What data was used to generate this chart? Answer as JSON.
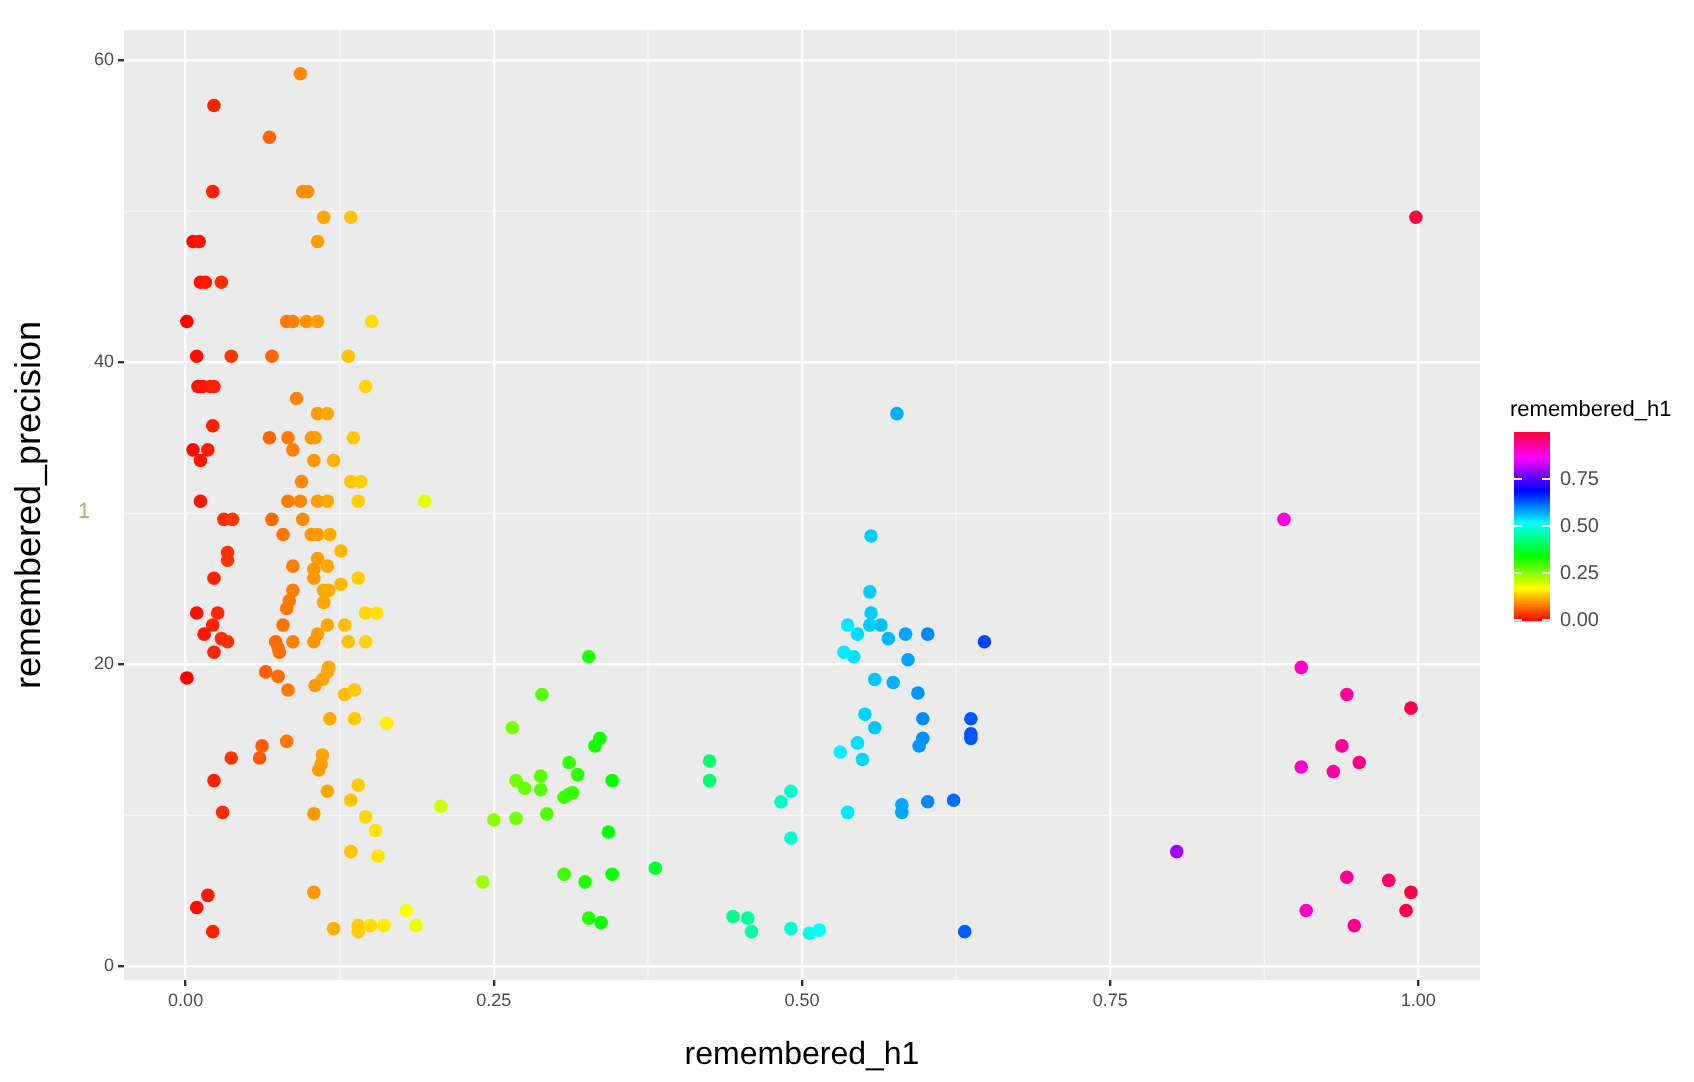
{
  "chart_data": {
    "type": "scatter",
    "xlabel": "remembered_h1",
    "ylabel": "remembered_precision",
    "clabel": "remembered_h1",
    "annotations": [
      "1"
    ],
    "x": [
      0.093,
      0.023,
      0.068,
      0.022,
      0.095,
      0.099,
      0.112,
      0.134,
      0.006,
      0.011,
      0.107,
      0.012,
      0.016,
      0.029,
      0.001,
      0.082,
      0.087,
      0.098,
      0.107,
      0.151,
      0.009,
      0.037,
      0.07,
      0.132,
      0.146,
      0.01,
      0.014,
      0.02,
      0.023,
      0.09,
      0.107,
      0.115,
      0.022,
      0.068,
      0.083,
      0.102,
      0.105,
      0.136,
      0.006,
      0.018,
      0.012,
      0.087,
      0.104,
      0.12,
      0.094,
      0.134,
      0.142,
      0.012,
      0.083,
      0.093,
      0.107,
      0.115,
      0.14,
      0.194,
      0.031,
      0.038,
      0.07,
      0.095,
      0.102,
      0.107,
      0.117,
      0.079,
      0.034,
      0.034,
      0.107,
      0.126,
      0.087,
      0.104,
      0.104,
      0.115,
      0.023,
      0.14,
      0.126,
      0.087,
      0.112,
      0.116,
      0.084,
      0.112,
      0.082,
      0.009,
      0.026,
      0.146,
      0.155,
      0.022,
      0.079,
      0.115,
      0.129,
      0.015,
      0.107,
      0.029,
      0.034,
      0.073,
      0.087,
      0.104,
      0.132,
      0.146,
      0.023,
      0.075,
      0.076,
      0.001,
      0.065,
      0.075,
      0.083,
      0.116,
      0.115,
      0.111,
      0.105,
      0.129,
      0.137,
      0.117,
      0.137,
      0.163,
      0.082,
      0.062,
      0.06,
      0.037,
      0.111,
      0.11,
      0.108,
      0.023,
      0.115,
      0.14,
      0.134,
      0.03,
      0.104,
      0.146,
      0.154,
      0.134,
      0.156,
      0.104,
      0.018,
      0.009,
      0.022,
      0.179,
      0.187,
      0.12,
      0.14,
      0.14,
      0.15,
      0.161,
      0.207,
      0.241,
      0.25,
      0.268,
      0.265,
      0.289,
      0.327,
      0.268,
      0.275,
      0.288,
      0.288,
      0.293,
      0.307,
      0.311,
      0.314,
      0.311,
      0.318,
      0.332,
      0.336,
      0.346,
      0.343,
      0.307,
      0.324,
      0.346,
      0.381,
      0.327,
      0.337,
      0.425,
      0.425,
      0.444,
      0.456,
      0.459,
      0.483,
      0.491,
      0.491,
      0.491,
      0.506,
      0.514,
      0.577,
      0.556,
      0.555,
      0.556,
      0.537,
      0.555,
      0.564,
      0.545,
      0.57,
      0.584,
      0.602,
      0.648,
      0.534,
      0.542,
      0.586,
      0.559,
      0.574,
      0.594,
      0.551,
      0.559,
      0.598,
      0.637,
      0.637,
      0.637,
      0.598,
      0.595,
      0.545,
      0.531,
      0.549,
      0.537,
      0.581,
      0.581,
      0.602,
      0.623,
      0.804,
      0.632,
      0.998,
      0.891,
      0.905,
      0.942,
      0.994,
      0.938,
      0.905,
      0.931,
      0.952,
      0.942,
      0.976,
      0.994,
      0.909,
      0.99,
      0.948
    ],
    "values": [
      59.1,
      57.0,
      54.9,
      51.3,
      51.3,
      51.3,
      49.6,
      49.6,
      48.0,
      48.0,
      48.0,
      45.3,
      45.3,
      45.3,
      42.7,
      42.7,
      42.7,
      42.7,
      42.7,
      42.7,
      40.4,
      40.4,
      40.4,
      40.4,
      38.4,
      38.4,
      38.4,
      38.4,
      38.4,
      37.6,
      36.6,
      36.6,
      35.8,
      35.0,
      35.0,
      35.0,
      35.0,
      35.0,
      34.2,
      34.2,
      33.5,
      34.2,
      33.5,
      33.5,
      32.1,
      32.1,
      32.1,
      30.8,
      30.8,
      30.8,
      30.8,
      30.8,
      30.8,
      30.8,
      29.6,
      29.6,
      29.6,
      29.6,
      28.6,
      28.6,
      28.6,
      28.6,
      27.4,
      26.9,
      27.0,
      27.5,
      26.5,
      26.3,
      25.7,
      26.5,
      25.7,
      25.7,
      25.3,
      24.9,
      24.9,
      24.9,
      24.2,
      24.1,
      23.7,
      23.4,
      23.4,
      23.4,
      23.4,
      22.6,
      22.6,
      22.6,
      22.6,
      22.0,
      22.0,
      21.7,
      21.5,
      21.5,
      21.5,
      21.5,
      21.5,
      21.5,
      20.8,
      21.1,
      20.8,
      19.1,
      19.5,
      19.2,
      18.3,
      19.8,
      19.5,
      19.0,
      18.6,
      18.0,
      18.3,
      16.4,
      16.4,
      16.1,
      14.9,
      14.6,
      13.8,
      13.8,
      14.0,
      13.4,
      13.0,
      12.3,
      11.6,
      12.0,
      11.0,
      10.2,
      10.1,
      9.9,
      9.0,
      7.6,
      7.3,
      4.9,
      4.7,
      3.9,
      2.3,
      3.7,
      2.7,
      2.5,
      2.7,
      2.3,
      2.7,
      2.7,
      10.6,
      5.6,
      9.7,
      9.8,
      15.8,
      18.0,
      20.5,
      12.3,
      11.8,
      12.6,
      11.7,
      10.1,
      11.2,
      11.4,
      11.5,
      13.5,
      12.7,
      14.6,
      15.1,
      12.3,
      8.9,
      6.1,
      5.6,
      6.1,
      6.5,
      3.2,
      2.9,
      13.6,
      12.3,
      3.3,
      3.2,
      2.3,
      10.9,
      11.6,
      8.5,
      2.5,
      2.2,
      2.4,
      36.6,
      28.5,
      24.8,
      23.4,
      22.6,
      22.6,
      22.6,
      22.0,
      21.7,
      22.0,
      22.0,
      21.5,
      20.8,
      20.5,
      20.3,
      19.0,
      18.8,
      18.1,
      16.7,
      15.8,
      16.4,
      16.4,
      15.4,
      15.1,
      15.1,
      14.6,
      14.8,
      14.2,
      13.7,
      10.2,
      10.7,
      10.2,
      10.9,
      11.0,
      7.6,
      2.3,
      49.6,
      29.6,
      19.8,
      18.0,
      17.1,
      14.6,
      13.2,
      12.9,
      13.5,
      5.9,
      5.7,
      4.9,
      3.7,
      3.7,
      2.7
    ],
    "cvalues": [
      0.093,
      0.023,
      0.068,
      0.022,
      0.095,
      0.099,
      0.112,
      0.134,
      0.006,
      0.011,
      0.107,
      0.012,
      0.016,
      0.029,
      0.001,
      0.082,
      0.087,
      0.098,
      0.107,
      0.151,
      0.009,
      0.037,
      0.07,
      0.132,
      0.146,
      0.01,
      0.014,
      0.02,
      0.023,
      0.09,
      0.107,
      0.115,
      0.022,
      0.068,
      0.083,
      0.102,
      0.105,
      0.136,
      0.006,
      0.018,
      0.012,
      0.087,
      0.104,
      0.12,
      0.094,
      0.134,
      0.142,
      0.012,
      0.083,
      0.093,
      0.107,
      0.115,
      0.14,
      0.194,
      0.031,
      0.038,
      0.07,
      0.095,
      0.102,
      0.107,
      0.117,
      0.079,
      0.034,
      0.034,
      0.107,
      0.126,
      0.087,
      0.104,
      0.104,
      0.115,
      0.023,
      0.14,
      0.126,
      0.087,
      0.112,
      0.116,
      0.084,
      0.112,
      0.082,
      0.009,
      0.026,
      0.146,
      0.155,
      0.022,
      0.079,
      0.115,
      0.129,
      0.015,
      0.107,
      0.029,
      0.034,
      0.073,
      0.087,
      0.104,
      0.132,
      0.146,
      0.023,
      0.075,
      0.076,
      0.001,
      0.065,
      0.075,
      0.083,
      0.116,
      0.115,
      0.111,
      0.105,
      0.129,
      0.137,
      0.117,
      0.137,
      0.163,
      0.082,
      0.062,
      0.06,
      0.037,
      0.111,
      0.11,
      0.108,
      0.023,
      0.115,
      0.14,
      0.134,
      0.03,
      0.104,
      0.146,
      0.154,
      0.134,
      0.156,
      0.104,
      0.018,
      0.009,
      0.022,
      0.179,
      0.187,
      0.12,
      0.14,
      0.14,
      0.15,
      0.161,
      0.207,
      0.241,
      0.25,
      0.268,
      0.265,
      0.289,
      0.327,
      0.268,
      0.275,
      0.288,
      0.288,
      0.293,
      0.307,
      0.311,
      0.314,
      0.311,
      0.318,
      0.332,
      0.336,
      0.346,
      0.343,
      0.307,
      0.324,
      0.346,
      0.381,
      0.327,
      0.337,
      0.425,
      0.425,
      0.444,
      0.456,
      0.459,
      0.483,
      0.491,
      0.491,
      0.491,
      0.506,
      0.514,
      0.577,
      0.556,
      0.555,
      0.556,
      0.537,
      0.555,
      0.564,
      0.545,
      0.57,
      0.584,
      0.602,
      0.648,
      0.534,
      0.542,
      0.586,
      0.559,
      0.574,
      0.594,
      0.551,
      0.559,
      0.598,
      0.637,
      0.637,
      0.637,
      0.598,
      0.595,
      0.545,
      0.531,
      0.549,
      0.537,
      0.581,
      0.581,
      0.602,
      0.623,
      0.804,
      0.632,
      0.998,
      0.891,
      0.905,
      0.942,
      0.994,
      0.938,
      0.905,
      0.931,
      0.952,
      0.942,
      0.976,
      0.994,
      0.909,
      0.99,
      0.948
    ],
    "xlim": [
      -0.05,
      1.05
    ],
    "ylim": [
      -0.9,
      62
    ],
    "xticks": [
      {
        "value": 0,
        "label": "0.00"
      },
      {
        "value": 0.25,
        "label": "0.25"
      },
      {
        "value": 0.5,
        "label": "0.50"
      },
      {
        "value": 0.75,
        "label": "0.75"
      },
      {
        "value": 1,
        "label": "1.00"
      }
    ],
    "yticks": [
      0,
      20,
      40,
      60
    ],
    "clim": [
      0,
      1
    ],
    "cticks": [
      {
        "value": 0,
        "label": "0.00"
      },
      {
        "value": 0.25,
        "label": "0.25"
      },
      {
        "value": 0.5,
        "label": "0.50"
      },
      {
        "value": 0.75,
        "label": "0.75"
      }
    ],
    "grid": true,
    "marker": "circle"
  }
}
